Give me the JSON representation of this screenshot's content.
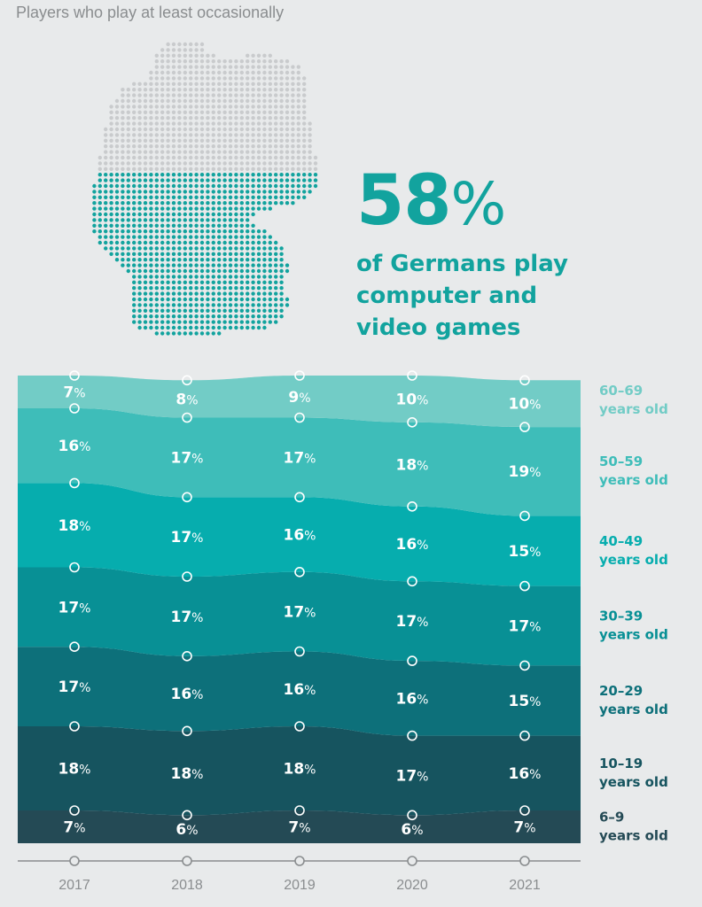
{
  "header": {
    "title": "Players who play at least occasionally"
  },
  "headline": {
    "value": "58",
    "unit": "%",
    "lines": [
      "of Germans play",
      "computer and",
      "video games"
    ]
  },
  "colors": {
    "accent": "#12a39e",
    "grey_dot": "#c9cbcd",
    "teal_dot": "#12a39e",
    "bands": [
      "#244a55",
      "#16545f",
      "#0d707a",
      "#089095",
      "#06adae",
      "#3ebdb9",
      "#72ccc6"
    ],
    "legend": [
      "#244a55",
      "#16545f",
      "#0d707a",
      "#089095",
      "#06adae",
      "#3ebdb9",
      "#72ccc6"
    ]
  },
  "chart_data": {
    "type": "area",
    "stacked": true,
    "unit": "%",
    "x": [
      "2017",
      "2018",
      "2019",
      "2020",
      "2021"
    ],
    "series": [
      {
        "name": "6–9 years old",
        "label_lines": [
          "6–9",
          "years old"
        ],
        "values": [
          7,
          6,
          7,
          6,
          7
        ]
      },
      {
        "name": "10–19 years old",
        "label_lines": [
          "10–19",
          "years old"
        ],
        "values": [
          18,
          18,
          18,
          17,
          16
        ]
      },
      {
        "name": "20–29 years old",
        "label_lines": [
          "20–29",
          "years old"
        ],
        "values": [
          17,
          16,
          16,
          16,
          15
        ]
      },
      {
        "name": "30–39 years old",
        "label_lines": [
          "30–39",
          "years old"
        ],
        "values": [
          17,
          17,
          17,
          17,
          17
        ]
      },
      {
        "name": "40–49 years old",
        "label_lines": [
          "40–49",
          "years old"
        ],
        "values": [
          18,
          17,
          16,
          16,
          15
        ]
      },
      {
        "name": "50–59 years old",
        "label_lines": [
          "50–59",
          "years old"
        ],
        "values": [
          16,
          17,
          17,
          18,
          19
        ]
      },
      {
        "name": "60–69 years old",
        "label_lines": [
          "60–69",
          "years old"
        ],
        "values": [
          7,
          8,
          9,
          10,
          10
        ]
      }
    ],
    "ylim": [
      0,
      100
    ],
    "legend_position": "right"
  }
}
